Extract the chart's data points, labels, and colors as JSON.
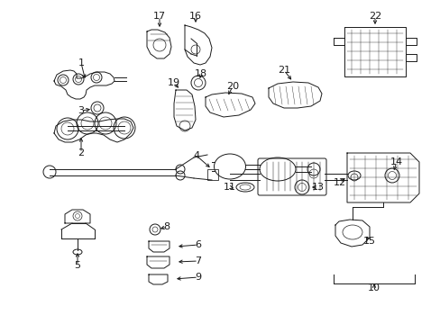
{
  "bg_color": "#ffffff",
  "line_color": "#1a1a1a",
  "lw": 0.7,
  "figsize": [
    4.89,
    3.6
  ],
  "dpi": 100
}
